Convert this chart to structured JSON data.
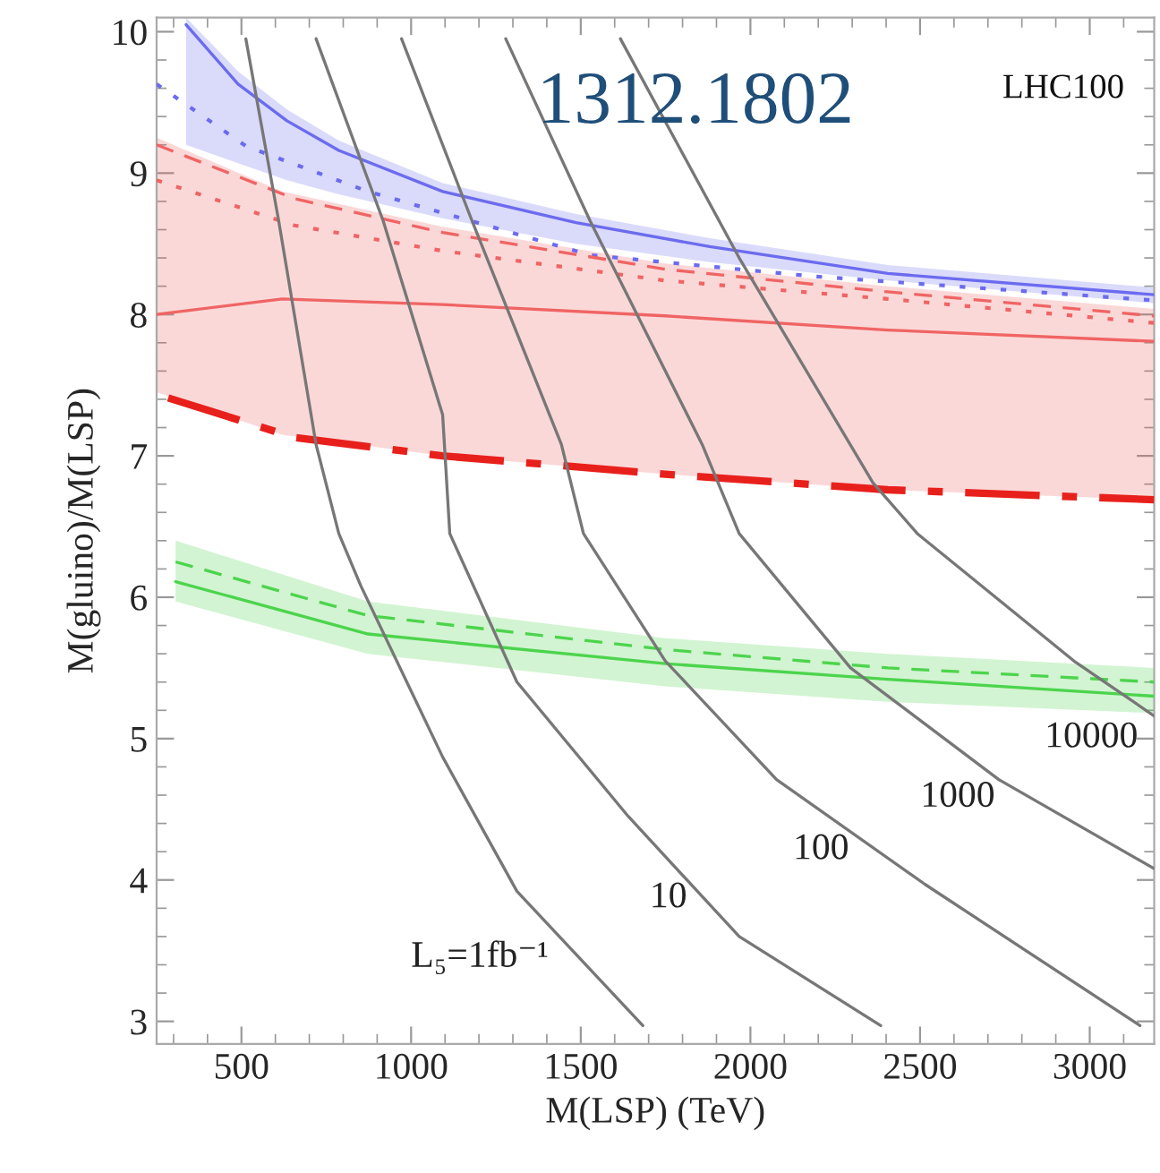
{
  "chart_data": {
    "type": "line",
    "xlabel": "M(LSP) (TeV)",
    "ylabel": "M(gluino)/M(LSP)",
    "xlim": [
      250,
      3190
    ],
    "ylim": [
      2.84,
      10.1
    ],
    "xticks": [
      500,
      1000,
      1500,
      2000,
      2500,
      3000
    ],
    "yticks": [
      3,
      4,
      5,
      6,
      7,
      8,
      9,
      10
    ],
    "grid": false,
    "legend": false,
    "series": [
      {
        "color": "#6b6bef",
        "line_style": "solid",
        "x": [
          337,
          490,
          634,
          787,
          1093,
          1486,
          1880,
          2405,
          3190
        ],
        "values": [
          10.05,
          9.63,
          9.37,
          9.16,
          8.87,
          8.65,
          8.48,
          8.29,
          8.14
        ],
        "upper": [
          10.1,
          9.72,
          9.45,
          9.23,
          8.93,
          8.71,
          8.54,
          8.35,
          8.19
        ],
        "lower": [
          9.2,
          9.07,
          8.95,
          8.85,
          8.68,
          8.5,
          8.37,
          8.24,
          8.08
        ]
      },
      {
        "color": "#6b6bef",
        "line_style": "dotted",
        "x": [
          250,
          514,
          873,
          1528,
          2185,
          3190
        ],
        "values": [
          9.63,
          9.19,
          8.87,
          8.42,
          8.27,
          8.1
        ]
      },
      {
        "color": "#f06464",
        "line_style": "solid",
        "x": [
          250,
          620,
          1093,
          1749,
          2405,
          3190
        ],
        "values": [
          8.0,
          8.11,
          8.07,
          7.99,
          7.89,
          7.81
        ],
        "upper": [
          9.25,
          8.87,
          8.62,
          8.36,
          8.2,
          8.04
        ],
        "lower": [
          7.45,
          7.15,
          7.0,
          6.87,
          6.76,
          6.69
        ]
      },
      {
        "color": "#f06464",
        "line_style": "dashed",
        "x": [
          250,
          656,
          1093,
          1749,
          2405,
          3190
        ],
        "values": [
          9.2,
          8.82,
          8.58,
          8.32,
          8.16,
          7.99
        ]
      },
      {
        "color": "#f06464",
        "line_style": "dotted",
        "x": [
          250,
          656,
          1093,
          1749,
          2405,
          3190
        ],
        "values": [
          8.95,
          8.63,
          8.45,
          8.24,
          8.11,
          7.94
        ]
      },
      {
        "color": "#e8201c",
        "line_style": "dashdot",
        "x": [
          284,
          656,
          1093,
          1749,
          2405,
          3190
        ],
        "values": [
          7.41,
          7.13,
          7.0,
          6.87,
          6.76,
          6.69
        ]
      },
      {
        "color": "#4cd44c",
        "line_style": "solid",
        "x": [
          306,
          873,
          1749,
          2405,
          3190
        ],
        "values": [
          6.11,
          5.74,
          5.53,
          5.42,
          5.3
        ],
        "upper": [
          6.4,
          5.97,
          5.71,
          5.6,
          5.5
        ],
        "lower": [
          5.97,
          5.6,
          5.37,
          5.26,
          5.18
        ]
      },
      {
        "color": "#4cd44c",
        "line_style": "dashed",
        "x": [
          306,
          873,
          1749,
          2405,
          3190
        ],
        "values": [
          6.25,
          5.87,
          5.63,
          5.5,
          5.4
        ]
      },
      {
        "color": "#777777",
        "line_style": "solid",
        "x": [
          513,
          610,
          720,
          787,
          852,
          1093,
          1312,
          1683
        ],
        "values": [
          9.95,
          8.66,
          7.08,
          6.45,
          6.08,
          4.87,
          3.92,
          2.97
        ]
      },
      {
        "color": "#777777",
        "line_style": "solid",
        "x": [
          720,
          918,
          1093,
          1114,
          1312,
          1640,
          1967,
          2384
        ],
        "values": [
          9.95,
          8.66,
          7.29,
          6.45,
          5.4,
          4.45,
          3.6,
          2.97
        ]
      },
      {
        "color": "#777777",
        "line_style": "solid",
        "x": [
          972,
          1180,
          1443,
          1508,
          1749,
          2077,
          2514,
          3148
        ],
        "values": [
          9.95,
          8.66,
          7.08,
          6.45,
          5.55,
          4.71,
          3.97,
          2.97
        ]
      },
      {
        "color": "#777777",
        "line_style": "solid",
        "x": [
          1279,
          1528,
          1858,
          1967,
          2295,
          2732,
          3190
        ],
        "values": [
          9.95,
          8.66,
          7.08,
          6.45,
          5.5,
          4.71,
          4.08
        ]
      },
      {
        "color": "#777777",
        "line_style": "solid",
        "x": [
          1617,
          1967,
          2361,
          2492,
          2953,
          3190
        ],
        "values": [
          9.95,
          8.4,
          6.81,
          6.45,
          5.55,
          5.16
        ]
      }
    ],
    "annotations": [
      "L₅=1fb⁻¹",
      "10",
      "100",
      "1000",
      "10000",
      "LHC100",
      "1312.1802"
    ]
  }
}
